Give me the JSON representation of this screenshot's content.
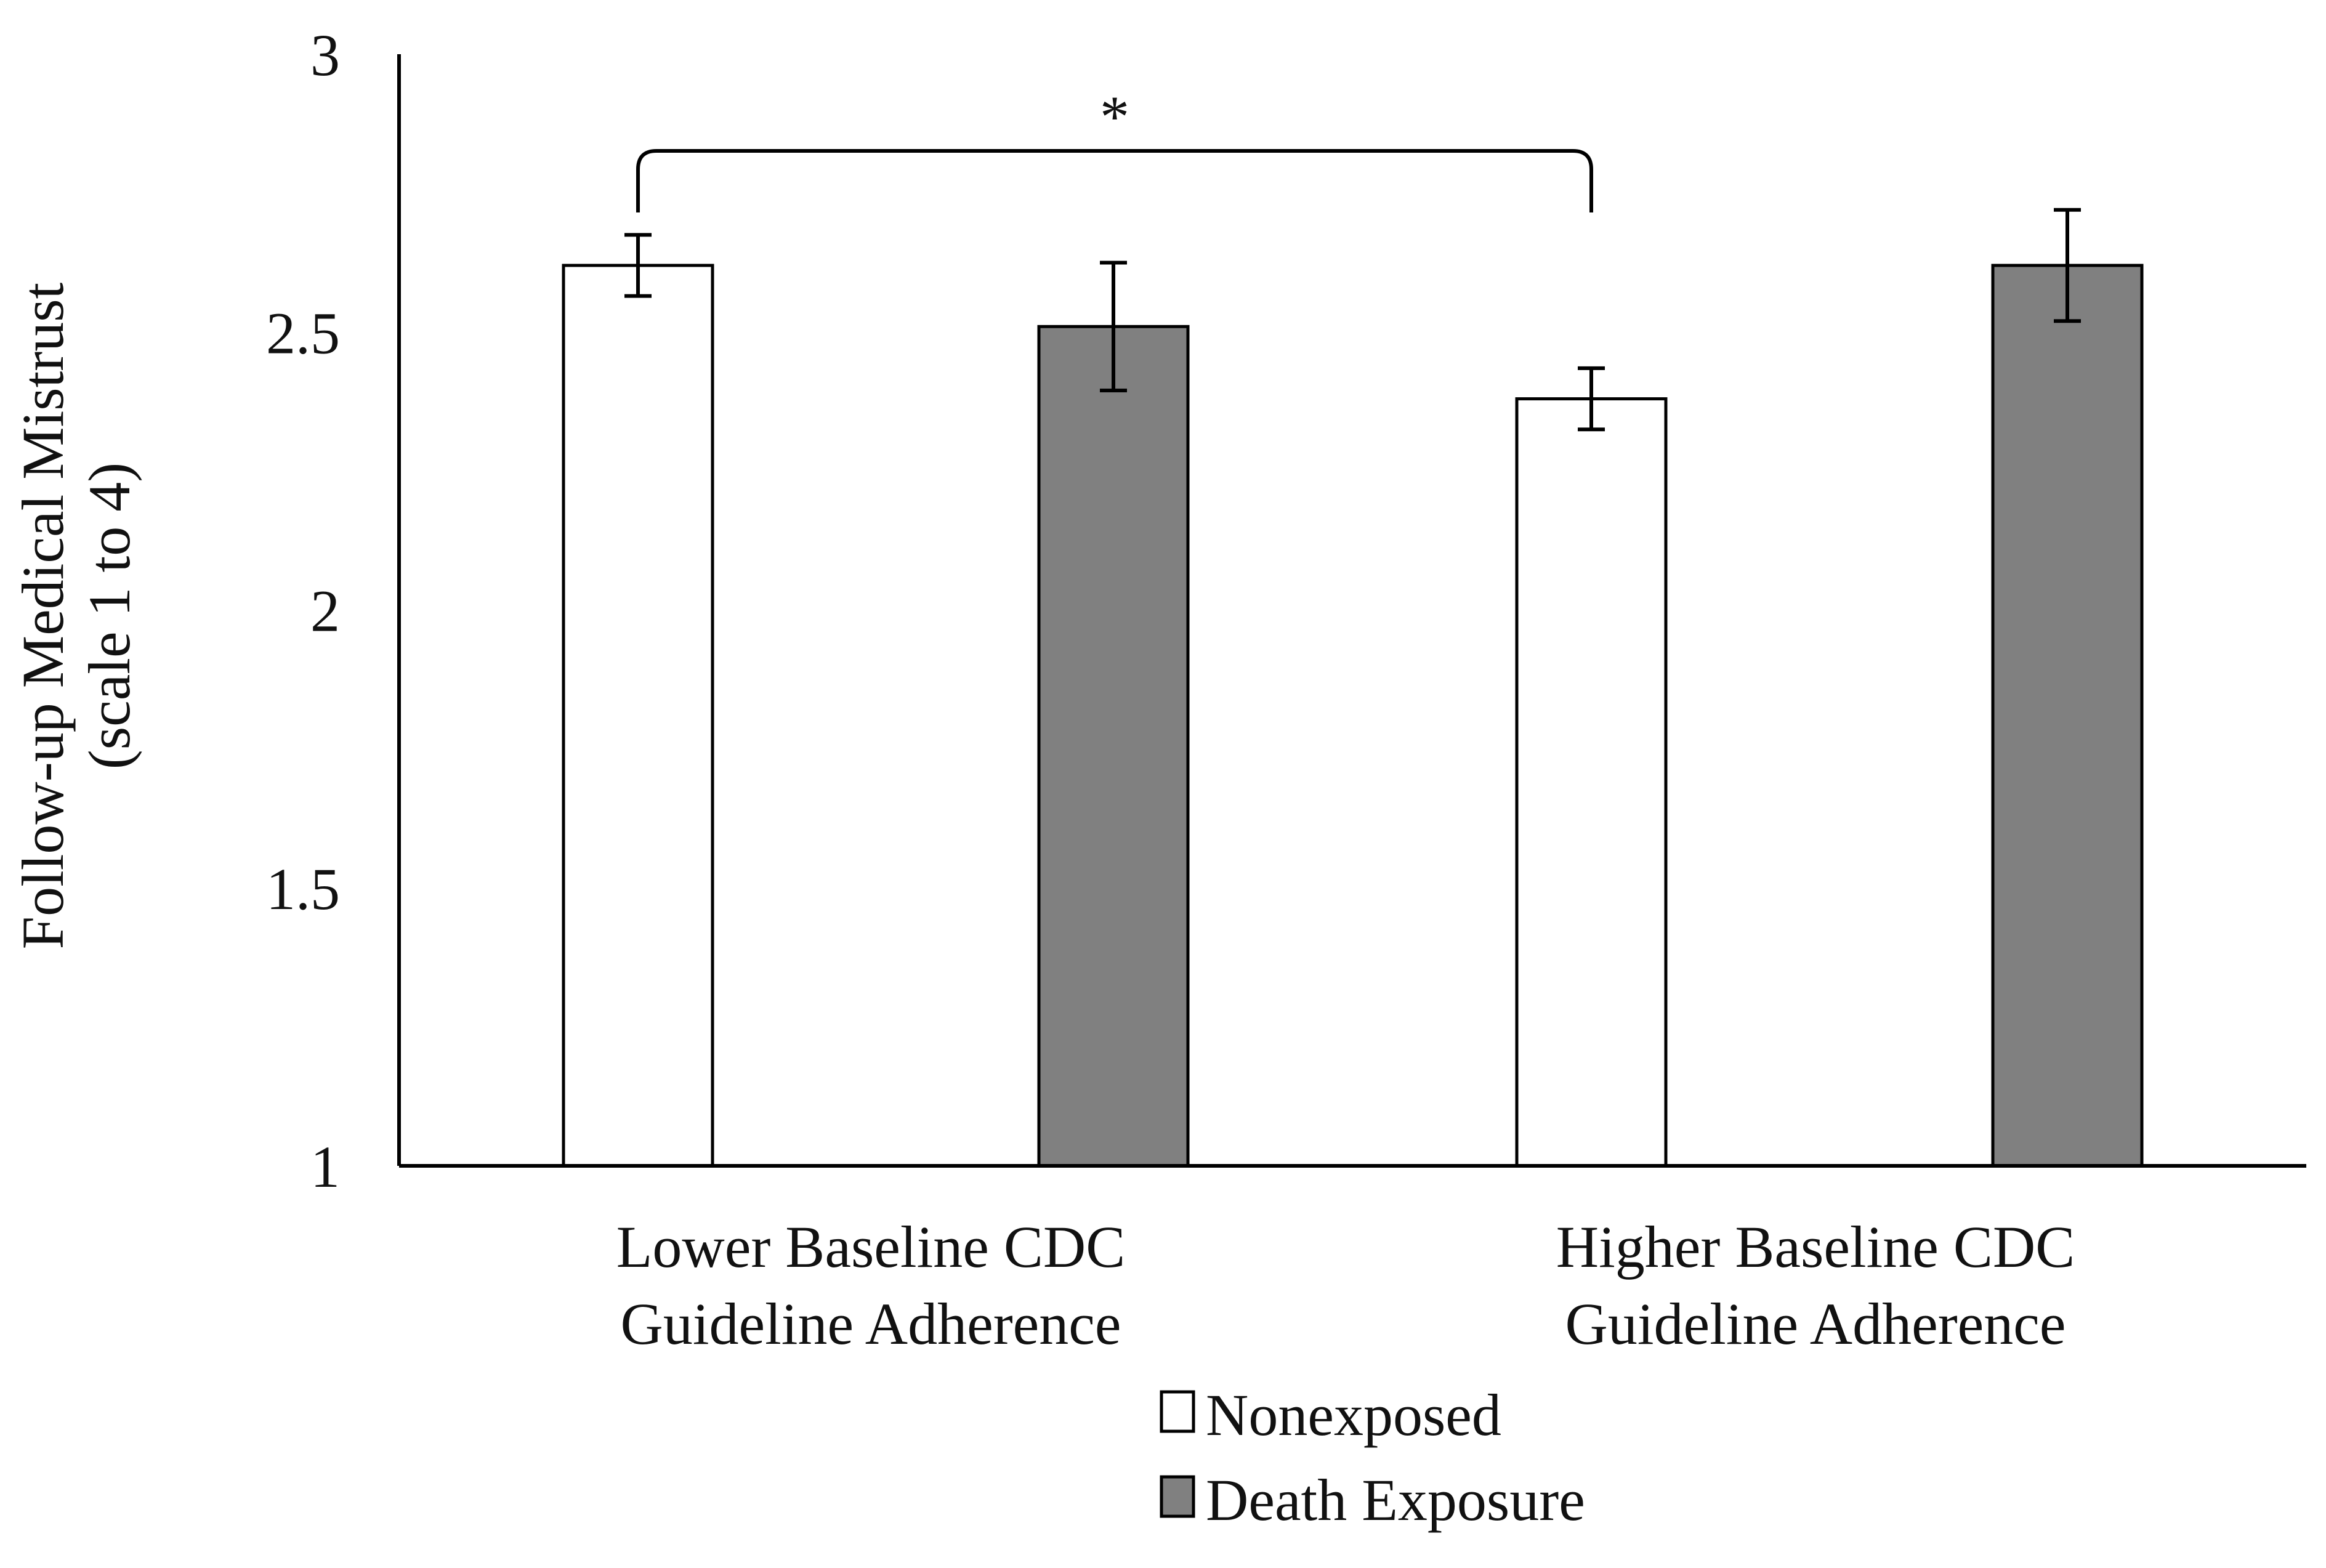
{
  "chart_data": {
    "type": "bar",
    "title": "",
    "xlabel": "",
    "ylabel": "Follow-up Medical Mistrust",
    "ylabel_line2": "(scale 1 to 4)",
    "ylim": [
      1,
      3
    ],
    "yticks": [
      "1",
      "1.5",
      "2",
      "2.5",
      "3"
    ],
    "categories": [
      [
        "Lower Baseline CDC",
        "Guideline Adherence"
      ],
      [
        "Higher Baseline CDC",
        "Guideline Adherence"
      ]
    ],
    "series": [
      {
        "name": "Nonexposed",
        "color": "#ffffff",
        "values": [
          2.62,
          2.38
        ],
        "error": [
          0.055,
          0.055
        ]
      },
      {
        "name": "Death Exposure",
        "color": "#808080",
        "values": [
          2.51,
          2.62
        ],
        "error": [
          0.115,
          0.1
        ]
      }
    ],
    "annotations": [
      {
        "text": "*",
        "type": "significance-bracket",
        "from": {
          "category": 0,
          "series": 0
        },
        "to": {
          "category": 1,
          "series": 0
        }
      }
    ],
    "legend": {
      "position": "bottom-center",
      "entries": [
        "Nonexposed",
        "Death Exposure"
      ]
    },
    "grid": false
  }
}
